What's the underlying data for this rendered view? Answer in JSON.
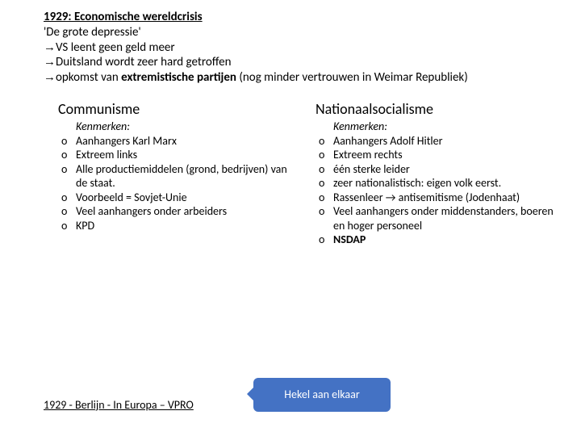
{
  "header": {
    "title": "1929: Economische wereldcrisis",
    "subtitle": "'De grote depressie'",
    "lines": [
      {
        "pre": "VS leent geen geld meer"
      },
      {
        "pre": "Duitsland wordt zeer hard getroffen"
      },
      {
        "pre": "opkomst van ",
        "bold": "extremistische partijen",
        "post": " (nog minder vertrouwen in Weimar Republiek)"
      }
    ]
  },
  "columns": {
    "left": {
      "title": "Communisme",
      "label": "Kenmerken:",
      "items": [
        "Aanhangers Karl Marx",
        "Extreem links",
        "Alle productiemiddelen (grond, bedrijven) van de staat.",
        "Voorbeeld = Sovjet-Unie",
        "Veel aanhangers onder arbeiders",
        "KPD"
      ]
    },
    "right": {
      "title": "Nationaalsocialisme",
      "label": "Kenmerken:",
      "items": [
        "Aanhangers Adolf Hitler",
        "Extreem rechts",
        "één sterke leider",
        "zeer nationalistisch: eigen volk eerst.",
        "Rassenleer → antisemitisme (Jodenhaat)",
        "Veel aanhangers onder middenstanders, boeren en hoger personeel"
      ],
      "bold_last": "NSDAP"
    }
  },
  "footer": {
    "link_text": "1929 - Berlijn - In Europa – VPRO",
    "callout": "Hekel aan elkaar"
  },
  "style": {
    "page_bg": "#ffffff",
    "text_color": "#000000",
    "callout_bg": "#4472c4",
    "callout_text": "#ffffff",
    "base_fontsize": 15,
    "col_title_fontsize": 18,
    "list_fontsize": 14
  }
}
